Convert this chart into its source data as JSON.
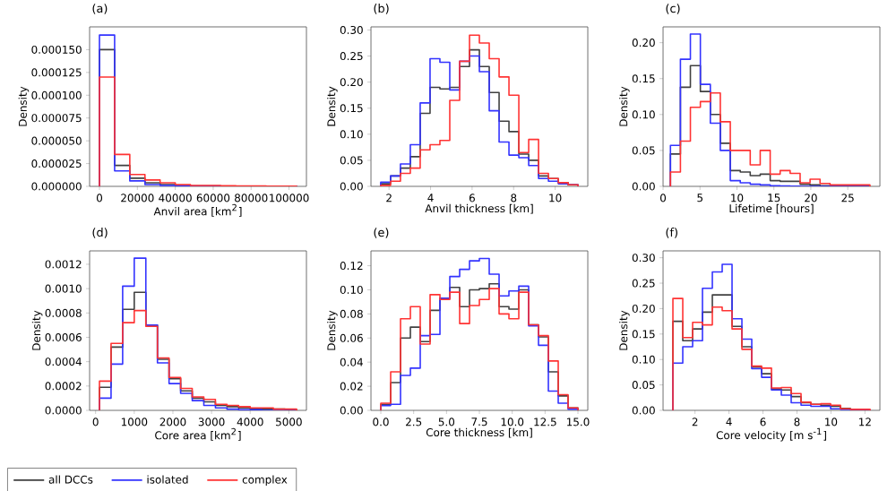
{
  "chart_data": [
    {
      "type": "histogram",
      "title": "(a)",
      "xlabel": "Anvil area [km$^{2}$]",
      "ylabel": "Density",
      "bins": [
        0,
        8000,
        16000,
        24000,
        32000,
        40000,
        48000,
        56000,
        64000,
        72000,
        80000,
        88000,
        96000,
        104000
      ],
      "series": [
        {
          "color": "#404040",
          "values": [
            0.00015,
            2.3e-05,
            9e-06,
            4e-06,
            2e-06,
            1e-06,
            5e-07,
            4e-07,
            3e-07,
            2e-07,
            2e-07,
            1e-07,
            1e-07
          ]
        },
        {
          "color": "#3333ff",
          "values": [
            0.000166,
            1.7e-05,
            6e-06,
            2e-06,
            1e-06,
            5e-07,
            3e-07,
            2e-07,
            1e-07,
            1e-07,
            1e-07,
            1e-07,
            1e-07
          ]
        },
        {
          "color": "#ff3333",
          "values": [
            0.00012,
            3.5e-05,
            1.3e-05,
            7e-06,
            4e-06,
            2e-06,
            1e-06,
            1e-06,
            8e-07,
            5e-07,
            5e-07,
            3e-07,
            3e-07
          ]
        }
      ],
      "xlim": [
        -5200,
        109200
      ],
      "ylim": [
        0,
        0.000175
      ],
      "xticks": [
        0,
        20000,
        40000,
        60000,
        80000,
        100000
      ],
      "yticks": [
        {
          "value": 0,
          "label": "0.000000"
        },
        {
          "value": 2.5e-05,
          "label": "0.000025"
        },
        {
          "value": 5e-05,
          "label": "0.000050"
        },
        {
          "value": 7.5e-05,
          "label": "0.000075"
        },
        {
          "value": 0.0001,
          "label": "0.000100"
        },
        {
          "value": 0.000125,
          "label": "0.000125"
        },
        {
          "value": 0.00015,
          "label": "0.000150"
        }
      ]
    },
    {
      "type": "histogram",
      "title": "(b)",
      "xlabel": "Anvil thickness [km]",
      "ylabel": "Density",
      "bins": [
        1.6,
        2.075,
        2.55,
        3.025,
        3.5,
        3.975,
        4.45,
        4.925,
        5.4,
        5.875,
        6.35,
        6.825,
        7.3,
        7.775,
        8.25,
        8.725,
        9.2,
        9.675,
        10.15,
        10.625,
        11.1
      ],
      "series": [
        {
          "color": "#404040",
          "values": [
            0.005,
            0.02,
            0.035,
            0.057,
            0.14,
            0.19,
            0.187,
            0.19,
            0.23,
            0.262,
            0.23,
            0.18,
            0.125,
            0.105,
            0.062,
            0.05,
            0.02,
            0.015,
            0.007,
            0.003
          ]
        },
        {
          "color": "#3333ff",
          "values": [
            0.008,
            0.02,
            0.043,
            0.08,
            0.16,
            0.245,
            0.238,
            0.185,
            0.24,
            0.25,
            0.22,
            0.145,
            0.085,
            0.06,
            0.055,
            0.04,
            0.015,
            0.01,
            0.005,
            0.003
          ]
        },
        {
          "color": "#ff3333",
          "values": [
            0.002,
            0.01,
            0.025,
            0.035,
            0.07,
            0.08,
            0.088,
            0.165,
            0.24,
            0.29,
            0.275,
            0.245,
            0.21,
            0.175,
            0.065,
            0.09,
            0.025,
            0.015,
            0.007,
            0.003
          ]
        }
      ],
      "xlim": [
        1.13,
        11.57
      ],
      "ylim": [
        0,
        0.306
      ],
      "xticks": [
        2,
        4,
        6,
        8,
        10
      ],
      "yticks": [
        {
          "value": 0,
          "label": "0.00"
        },
        {
          "value": 0.05,
          "label": "0.05"
        },
        {
          "value": 0.1,
          "label": "0.10"
        },
        {
          "value": 0.15,
          "label": "0.15"
        },
        {
          "value": 0.2,
          "label": "0.20"
        },
        {
          "value": 0.25,
          "label": "0.25"
        },
        {
          "value": 0.3,
          "label": "0.30"
        }
      ]
    },
    {
      "type": "histogram",
      "title": "(c)",
      "xlabel": "Lifetime [hours]",
      "ylabel": "Density",
      "bins": [
        1,
        2.35,
        3.7,
        5.05,
        6.4,
        7.75,
        9.1,
        10.45,
        11.8,
        13.15,
        14.5,
        15.85,
        17.2,
        18.55,
        19.9,
        21.25,
        22.6,
        23.95,
        25.3,
        26.65,
        28
      ],
      "series": [
        {
          "color": "#404040",
          "values": [
            0.045,
            0.138,
            0.168,
            0.132,
            0.1,
            0.06,
            0.022,
            0.02,
            0.015,
            0.017,
            0.008,
            0.007,
            0.007,
            0.003,
            0.002,
            0.001,
            0.001,
            0.0005,
            0.0005,
            0.0003
          ]
        },
        {
          "color": "#3333ff",
          "values": [
            0.057,
            0.177,
            0.212,
            0.142,
            0.088,
            0.05,
            0.008,
            0.005,
            0.003,
            0.002,
            0.001,
            0.0005,
            0.0003,
            0,
            0,
            0,
            0,
            0,
            0,
            0
          ]
        },
        {
          "color": "#ff3333",
          "values": [
            0.02,
            0.063,
            0.11,
            0.118,
            0.13,
            0.09,
            0.05,
            0.05,
            0.03,
            0.05,
            0.017,
            0.022,
            0.018,
            0.005,
            0.01,
            0.004,
            0.002,
            0.002,
            0.002,
            0.002
          ]
        }
      ],
      "xlim": [
        0,
        29.35
      ],
      "ylim": [
        0,
        0.222
      ],
      "xticks": [
        0,
        5,
        10,
        15,
        20,
        25
      ],
      "yticks": [
        {
          "value": 0,
          "label": "0.00"
        },
        {
          "value": 0.05,
          "label": "0.05"
        },
        {
          "value": 0.1,
          "label": "0.10"
        },
        {
          "value": 0.15,
          "label": "0.15"
        },
        {
          "value": 0.2,
          "label": "0.20"
        }
      ]
    },
    {
      "type": "histogram",
      "title": "(d)",
      "xlabel": "Core area [km$^{2}$]",
      "ylabel": "Density",
      "legend": "bottom",
      "bins": [
        100,
        400,
        700,
        1000,
        1300,
        1600,
        1900,
        2200,
        2500,
        2800,
        3100,
        3400,
        3700,
        4000,
        4300,
        4600,
        4900,
        5200
      ],
      "series": [
        {
          "name": "all DCCs",
          "color": "#404040",
          "values": [
            0.00019,
            0.00052,
            0.00083,
            0.00097,
            0.0007,
            0.00042,
            0.00026,
            0.00016,
            0.0001,
            7e-05,
            4e-05,
            3e-05,
            2e-05,
            1e-05,
            1e-05,
            1e-05,
            5e-06
          ]
        },
        {
          "name": "isolated",
          "color": "#3333ff",
          "values": [
            0.0001,
            0.00038,
            0.00102,
            0.00125,
            0.0007,
            0.00039,
            0.00022,
            0.00014,
            8e-05,
            4e-05,
            2e-05,
            1e-05,
            5e-06,
            5e-06,
            0,
            0,
            0
          ]
        },
        {
          "name": "complex",
          "color": "#ff3333",
          "values": [
            0.00024,
            0.00055,
            0.00072,
            0.00082,
            0.00069,
            0.00043,
            0.00027,
            0.00018,
            0.00011,
            9e-05,
            5e-05,
            4e-05,
            3e-05,
            2e-05,
            2e-05,
            1e-05,
            1e-05
          ]
        }
      ],
      "xlim": [
        -155,
        5455
      ],
      "ylim": [
        0,
        0.00131
      ],
      "xticks": [
        0,
        1000,
        2000,
        3000,
        4000,
        5000
      ],
      "yticks": [
        {
          "value": 0,
          "label": "0.0000"
        },
        {
          "value": 0.0002,
          "label": "0.0002"
        },
        {
          "value": 0.0004,
          "label": "0.0004"
        },
        {
          "value": 0.0006,
          "label": "0.0006"
        },
        {
          "value": 0.0008,
          "label": "0.0008"
        },
        {
          "value": 0.001,
          "label": "0.0010"
        },
        {
          "value": 0.0012,
          "label": "0.0012"
        }
      ]
    },
    {
      "type": "histogram",
      "title": "(e)",
      "xlabel": "Core thickness [km]",
      "ylabel": "Density",
      "bins": [
        0,
        0.75,
        1.5,
        2.25,
        3,
        3.75,
        4.5,
        5.25,
        6,
        6.75,
        7.5,
        8.25,
        9,
        9.75,
        10.5,
        11.25,
        12,
        12.75,
        13.5,
        14.25,
        15
      ],
      "series": [
        {
          "color": "#404040",
          "values": [
            0.005,
            0.023,
            0.06,
            0.069,
            0.057,
            0.083,
            0.093,
            0.102,
            0.086,
            0.1,
            0.101,
            0.105,
            0.086,
            0.084,
            0.1,
            0.071,
            0.061,
            0.032,
            0.012,
            0.002
          ]
        },
        {
          "color": "#3333ff",
          "values": [
            0.004,
            0.005,
            0.029,
            0.035,
            0.062,
            0.063,
            0.093,
            0.111,
            0.117,
            0.124,
            0.126,
            0.113,
            0.095,
            0.099,
            0.103,
            0.07,
            0.054,
            0.016,
            0.006,
            0.001
          ]
        },
        {
          "color": "#ff3333",
          "values": [
            0.006,
            0.032,
            0.076,
            0.086,
            0.055,
            0.096,
            0.092,
            0.098,
            0.072,
            0.087,
            0.092,
            0.101,
            0.08,
            0.076,
            0.098,
            0.071,
            0.062,
            0.041,
            0.013,
            0.002
          ]
        }
      ],
      "xlim": [
        -0.75,
        15.75
      ],
      "ylim": [
        0,
        0.1323
      ],
      "xticks": [
        {
          "value": 0,
          "label": "0.0"
        },
        {
          "value": 2.5,
          "label": "2.5"
        },
        {
          "value": 5,
          "label": "5.0"
        },
        {
          "value": 7.5,
          "label": "7.5"
        },
        {
          "value": 10,
          "label": "10.0"
        },
        {
          "value": 12.5,
          "label": "12.5"
        },
        {
          "value": 15,
          "label": "15.0"
        }
      ],
      "yticks": [
        {
          "value": 0,
          "label": "0.00"
        },
        {
          "value": 0.02,
          "label": "0.02"
        },
        {
          "value": 0.04,
          "label": "0.04"
        },
        {
          "value": 0.06,
          "label": "0.06"
        },
        {
          "value": 0.08,
          "label": "0.08"
        },
        {
          "value": 0.1,
          "label": "0.10"
        },
        {
          "value": 0.12,
          "label": "0.12"
        }
      ]
    },
    {
      "type": "histogram",
      "title": "(f)",
      "xlabel": "Core velocity [m s$^{-1}$]",
      "ylabel": "Density",
      "bins": [
        0.7,
        1.28,
        1.86,
        2.44,
        3.02,
        3.6,
        4.18,
        4.76,
        5.34,
        5.92,
        6.5,
        7.08,
        7.66,
        8.24,
        8.82,
        9.4,
        9.98,
        10.56,
        11.14,
        11.72,
        12.3
      ],
      "series": [
        {
          "color": "#404040",
          "values": [
            0.175,
            0.137,
            0.16,
            0.193,
            0.227,
            0.227,
            0.165,
            0.125,
            0.085,
            0.072,
            0.042,
            0.04,
            0.027,
            0.015,
            0.012,
            0.01,
            0.008,
            0.004,
            0.002,
            0.001
          ]
        },
        {
          "color": "#3333ff",
          "values": [
            0.093,
            0.125,
            0.137,
            0.24,
            0.272,
            0.287,
            0.18,
            0.14,
            0.082,
            0.065,
            0.04,
            0.03,
            0.015,
            0.01,
            0.008,
            0.008,
            0.003,
            0.002,
            0.001,
            0.0005
          ]
        },
        {
          "color": "#ff3333",
          "values": [
            0.22,
            0.143,
            0.173,
            0.168,
            0.203,
            0.196,
            0.16,
            0.12,
            0.087,
            0.083,
            0.044,
            0.045,
            0.033,
            0.016,
            0.012,
            0.013,
            0.01,
            0.003,
            0.002,
            0.002
          ]
        }
      ],
      "xlim": [
        0.12,
        12.88
      ],
      "ylim": [
        0,
        0.3135
      ],
      "xticks": [
        2,
        4,
        6,
        8,
        10,
        12
      ],
      "yticks": [
        {
          "value": 0,
          "label": "0.00"
        },
        {
          "value": 0.05,
          "label": "0.05"
        },
        {
          "value": 0.1,
          "label": "0.10"
        },
        {
          "value": 0.15,
          "label": "0.15"
        },
        {
          "value": 0.2,
          "label": "0.20"
        },
        {
          "value": 0.25,
          "label": "0.25"
        },
        {
          "value": 0.3,
          "label": "0.30"
        }
      ]
    }
  ]
}
